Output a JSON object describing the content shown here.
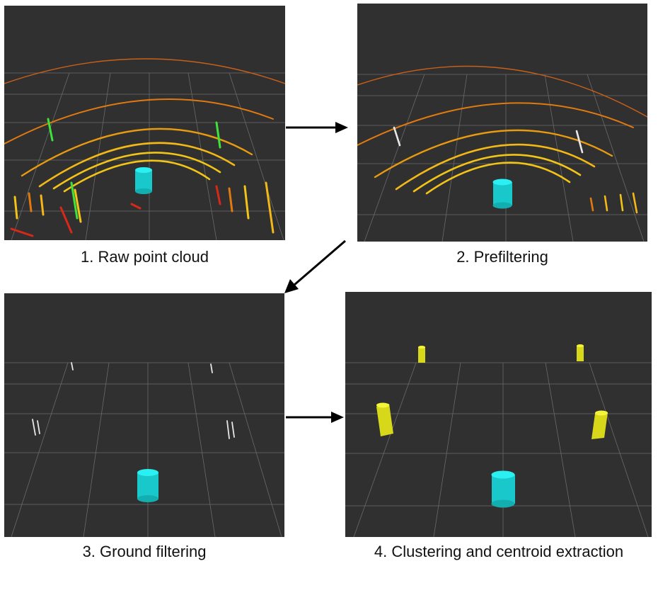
{
  "panels": [
    {
      "caption": "1. Raw point cloud"
    },
    {
      "caption": "2. Prefiltering"
    },
    {
      "caption": "3. Ground filtering"
    },
    {
      "caption": "4. Clustering and centroid extraction"
    }
  ],
  "colors": {
    "background": "#303030",
    "grid": "#6a6a6a",
    "vehicle_marker": "#18d9dc",
    "cone_marker": "#e8e81c",
    "ring_yellow": "#f2c418",
    "ring_orange": "#e07a10",
    "ring_red": "#d8281a",
    "points_green": "#3fe23a",
    "points_white": "#e8e8e8"
  },
  "icons": {
    "flow_arrow": "arrow-icon",
    "vehicle": "cylinder-icon",
    "cone": "cylinder-icon"
  }
}
